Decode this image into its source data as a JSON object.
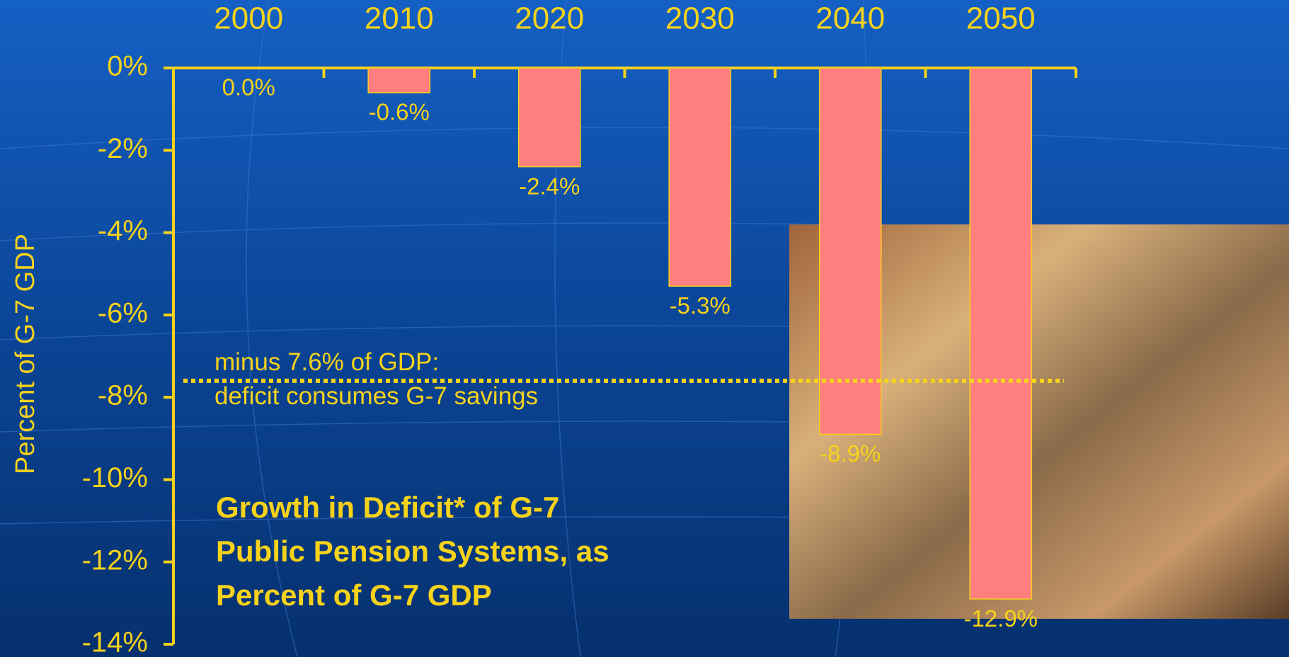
{
  "chart_data": {
    "type": "bar",
    "title": "Growth in Deficit* of G-7 Public Pension Systems, as Percent of G-7 GDP",
    "y_label": "Percent of G-7 GDP",
    "categories": [
      "2000",
      "2010",
      "2020",
      "2030",
      "2040",
      "2050"
    ],
    "values": [
      0,
      -0.6,
      -2.4,
      -5.3,
      -8.9,
      -12.9
    ],
    "value_labels": [
      "0.0%",
      "-0.6%",
      "-2.4%",
      "-5.3%",
      "-8.9%",
      "-12.9%"
    ],
    "color": "#ff7f7f",
    "ylim": [
      -14,
      0
    ],
    "yticks": [
      {
        "value": 0,
        "label": "0%"
      },
      {
        "value": -2,
        "label": "-2%"
      },
      {
        "value": -4,
        "label": "-4%"
      },
      {
        "value": -6,
        "label": "-6%"
      },
      {
        "value": -8,
        "label": "-8%"
      },
      {
        "value": -10,
        "label": "-10%"
      },
      {
        "value": -12,
        "label": "-12%"
      },
      {
        "value": -14,
        "label": "-14%"
      }
    ],
    "reference_line": {
      "value": -7.6,
      "label_lines": [
        "minus 7.6% of GDP:",
        "deficit consumes G-7 savings"
      ]
    }
  }
}
